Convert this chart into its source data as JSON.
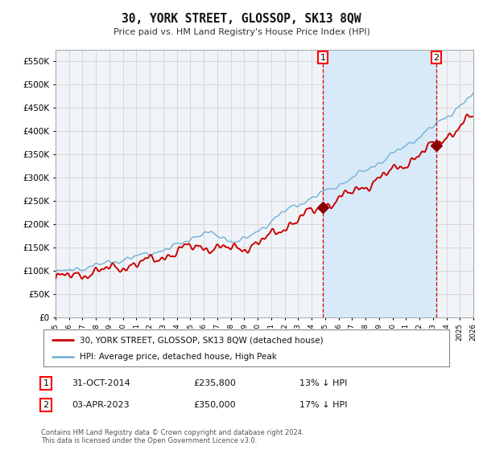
{
  "title": "30, YORK STREET, GLOSSOP, SK13 8QW",
  "subtitle": "Price paid vs. HM Land Registry's House Price Index (HPI)",
  "legend_line1": "30, YORK STREET, GLOSSOP, SK13 8QW (detached house)",
  "legend_line2": "HPI: Average price, detached house, High Peak",
  "annotation1_date": "31-OCT-2014",
  "annotation1_price": "£235,800",
  "annotation1_note": "13% ↓ HPI",
  "annotation2_date": "03-APR-2023",
  "annotation2_price": "£350,000",
  "annotation2_note": "17% ↓ HPI",
  "footer": "Contains HM Land Registry data © Crown copyright and database right 2024.\nThis data is licensed under the Open Government Licence v3.0.",
  "hpi_color": "#7ab4d8",
  "price_color": "#cc0000",
  "marker_color": "#8b0000",
  "vline_color": "#cc0000",
  "bg_color": "#ffffff",
  "plot_bg_color": "#f0f4f8",
  "shading_color": "#d8eaf8",
  "grid_color": "#cccccc",
  "ylim_max": 575000,
  "annotation1_year": 2014.83,
  "annotation2_year": 2023.25
}
